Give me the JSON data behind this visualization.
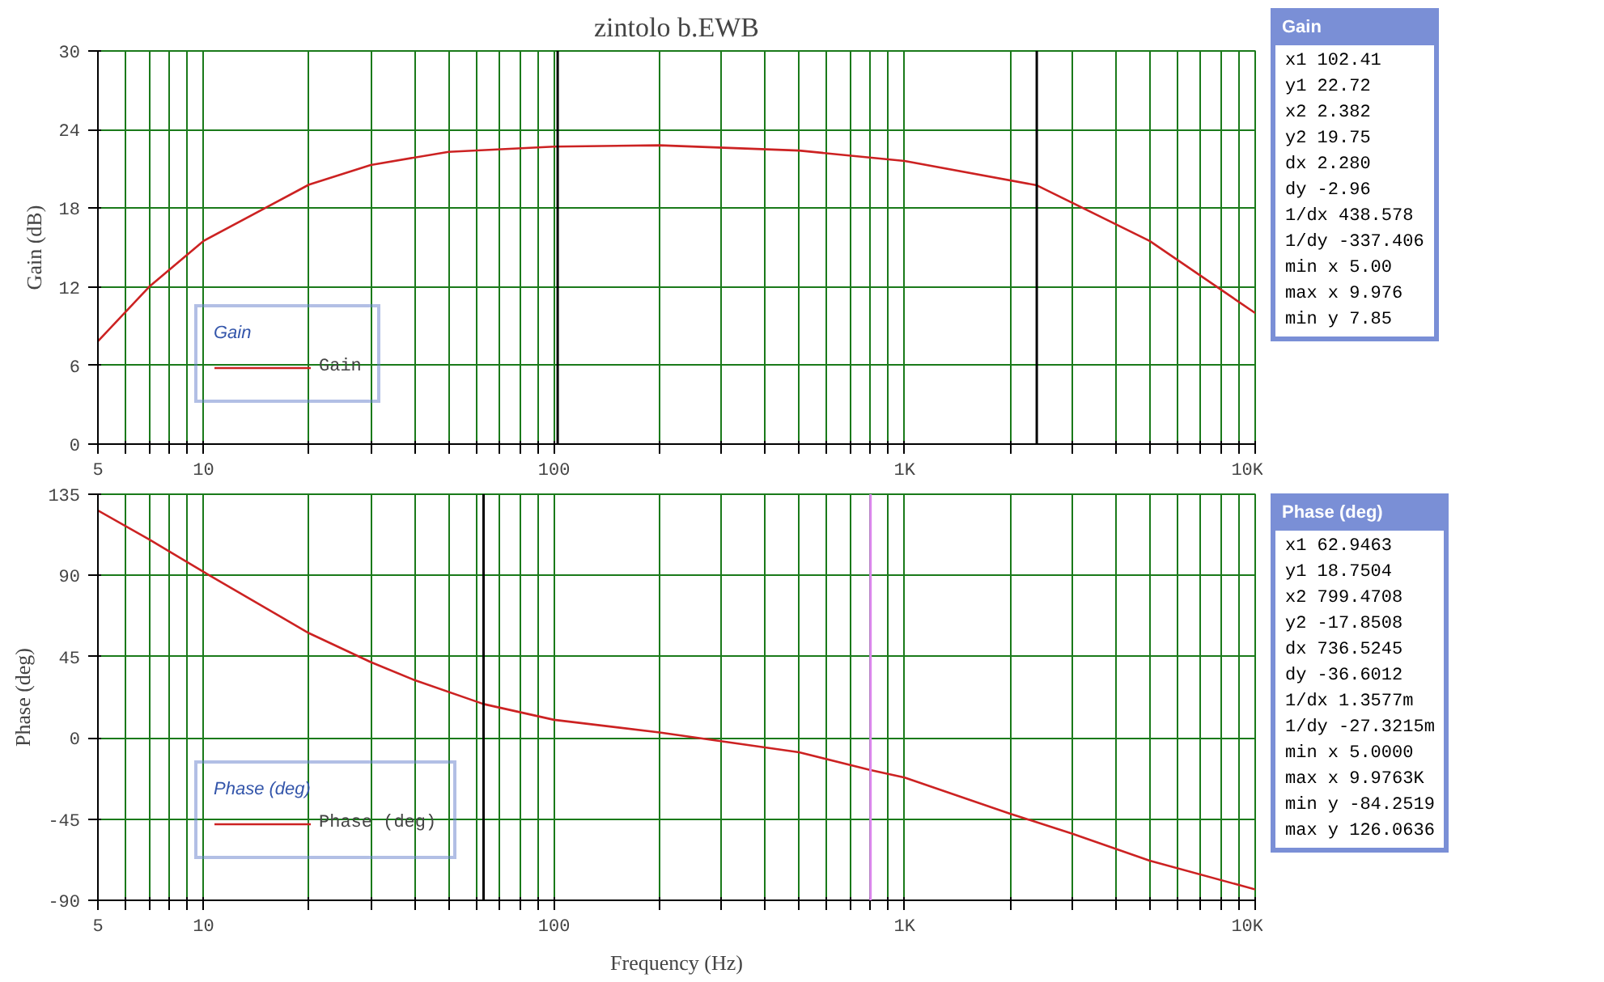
{
  "chart_data": [
    {
      "type": "line",
      "title": "zintolo b.EWB",
      "ylabel": "Gain (dB)",
      "legend_title": "Gain",
      "legend": "left",
      "grid": true,
      "log": "x",
      "xlim": [
        5,
        10000
      ],
      "xticks": [
        5,
        {
          "value": 6,
          "label": null
        },
        {
          "value": 7,
          "label": null
        },
        {
          "value": 8,
          "label": null
        },
        {
          "value": 9,
          "label": null
        },
        10,
        {
          "value": 20,
          "label": null
        },
        {
          "value": 30,
          "label": null
        },
        {
          "value": 40,
          "label": null
        },
        {
          "value": 50,
          "label": null
        },
        {
          "value": 60,
          "label": null
        },
        {
          "value": 70,
          "label": null
        },
        {
          "value": 80,
          "label": null
        },
        {
          "value": 90,
          "label": null
        },
        100,
        {
          "value": 200,
          "label": null
        },
        {
          "value": 300,
          "label": null
        },
        {
          "value": 400,
          "label": null
        },
        {
          "value": 500,
          "label": null
        },
        {
          "value": 600,
          "label": null
        },
        {
          "value": 700,
          "label": null
        },
        {
          "value": 800,
          "label": null
        },
        {
          "value": 900,
          "label": null
        },
        {
          "value": 1000,
          "label": "1K"
        },
        {
          "value": 2000,
          "label": null
        },
        {
          "value": 3000,
          "label": null
        },
        {
          "value": 4000,
          "label": null
        },
        {
          "value": 5000,
          "label": null
        },
        {
          "value": 6000,
          "label": null
        },
        {
          "value": 7000,
          "label": null
        },
        {
          "value": 8000,
          "label": null
        },
        {
          "value": 9000,
          "label": null
        },
        {
          "value": 10000,
          "label": "10K"
        }
      ],
      "ylim": [
        0,
        30
      ],
      "yticks": [
        0,
        6,
        12,
        18,
        24,
        30
      ],
      "series": [
        {
          "name": "Gain",
          "color": "#cc2222",
          "x": [
            5,
            7,
            10,
            20,
            30,
            50,
            100,
            200,
            500,
            1000,
            2382,
            5000,
            10000
          ],
          "values": [
            7.85,
            12,
            15.5,
            19.8,
            21.3,
            22.3,
            22.7,
            22.8,
            22.4,
            21.6,
            19.75,
            15.5,
            10
          ]
        }
      ],
      "ref_lines": [
        {
          "axis": "x",
          "value": 102.41,
          "color": "#000000"
        },
        {
          "axis": "x",
          "value": 2382,
          "color": "#000000"
        }
      ],
      "annotations": [
        "Gain",
        "x1 102.41",
        "y1 22.72",
        "x2 2.382",
        "y2 19.75",
        "dx 2.280",
        "dy -2.96",
        "1/dx 438.578",
        "1/dy -337.406",
        "min x 5.00",
        "max x 9.976",
        "min y 7.85"
      ]
    },
    {
      "type": "line",
      "xlabel": "Frequency (Hz)",
      "ylabel": "Phase (deg)",
      "legend_title": "Phase (deg)",
      "legend": "left",
      "grid": true,
      "log": "x",
      "xlim": [
        5,
        10000
      ],
      "xticks": [
        5,
        {
          "value": 6,
          "label": null
        },
        {
          "value": 7,
          "label": null
        },
        {
          "value": 8,
          "label": null
        },
        {
          "value": 9,
          "label": null
        },
        10,
        {
          "value": 20,
          "label": null
        },
        {
          "value": 30,
          "label": null
        },
        {
          "value": 40,
          "label": null
        },
        {
          "value": 50,
          "label": null
        },
        {
          "value": 60,
          "label": null
        },
        {
          "value": 70,
          "label": null
        },
        {
          "value": 80,
          "label": null
        },
        {
          "value": 90,
          "label": null
        },
        100,
        {
          "value": 200,
          "label": null
        },
        {
          "value": 300,
          "label": null
        },
        {
          "value": 400,
          "label": null
        },
        {
          "value": 500,
          "label": null
        },
        {
          "value": 600,
          "label": null
        },
        {
          "value": 700,
          "label": null
        },
        {
          "value": 800,
          "label": null
        },
        {
          "value": 900,
          "label": null
        },
        {
          "value": 1000,
          "label": "1K"
        },
        {
          "value": 2000,
          "label": null
        },
        {
          "value": 3000,
          "label": null
        },
        {
          "value": 4000,
          "label": null
        },
        {
          "value": 5000,
          "label": null
        },
        {
          "value": 6000,
          "label": null
        },
        {
          "value": 7000,
          "label": null
        },
        {
          "value": 8000,
          "label": null
        },
        {
          "value": 9000,
          "label": null
        },
        {
          "value": 10000,
          "label": "10K"
        }
      ],
      "ylim": [
        -90,
        135
      ],
      "yticks": [
        -90,
        -45,
        0,
        45,
        90,
        135
      ],
      "series": [
        {
          "name": "Phase (deg)",
          "color": "#cc2222",
          "x": [
            5,
            7,
            10,
            20,
            30,
            40,
            62.9463,
            100,
            200,
            500,
            799.4708,
            1000,
            2000,
            3000,
            5000,
            10000
          ],
          "values": [
            126,
            110,
            92,
            58,
            42,
            32,
            18.75,
            10,
            3,
            -8,
            -17.85,
            -22,
            -42,
            -53,
            -68,
            -84
          ]
        }
      ],
      "ref_lines": [
        {
          "axis": "x",
          "value": 62.9463,
          "color": "#000000"
        },
        {
          "axis": "x",
          "value": 799.4708,
          "color": "#dd88ee"
        }
      ],
      "annotations": [
        "Phase (deg)",
        "x1 62.9463",
        "y1 18.7504",
        "x2 799.4708",
        "y2 -17.8508",
        "dx 736.5245",
        "dy -36.6012",
        "1/dx 1.3577m",
        "1/dy -27.3215m",
        "min x 5.0000",
        "max x 9.9763K",
        "min y -84.2519",
        "max y 126.0636"
      ]
    }
  ]
}
